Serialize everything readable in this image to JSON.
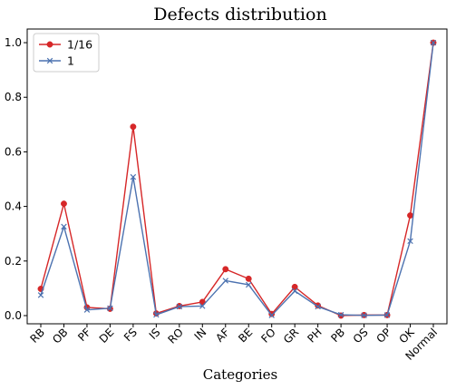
{
  "chart_data": {
    "type": "line",
    "title": "Defects distribution",
    "xlabel": "Categories",
    "ylabel": "",
    "categories": [
      "RB",
      "OB",
      "PF",
      "DE",
      "FS",
      "IS",
      "RO",
      "IN",
      "AF",
      "BE",
      "FO",
      "GR",
      "PH",
      "PB",
      "OS",
      "OP",
      "OK",
      "Normal"
    ],
    "ylim": [
      -0.03,
      1.05
    ],
    "yticks": [
      "0.0",
      "0.2",
      "0.4",
      "0.6",
      "0.8",
      "1.0"
    ],
    "grid": false,
    "legend_position": "upper-left",
    "series": [
      {
        "name": "1/16",
        "color": "#d62728",
        "marker": "circle",
        "values": [
          0.098,
          0.41,
          0.03,
          0.025,
          0.692,
          0.008,
          0.035,
          0.05,
          0.17,
          0.135,
          0.006,
          0.105,
          0.037,
          0.0,
          0.002,
          0.002,
          0.367,
          1.0
        ]
      },
      {
        "name": "1",
        "color": "#4c72b0",
        "marker": "x",
        "values": [
          0.075,
          0.326,
          0.021,
          0.027,
          0.508,
          0.003,
          0.033,
          0.035,
          0.128,
          0.113,
          0.001,
          0.09,
          0.033,
          0.003,
          0.001,
          0.002,
          0.273,
          1.0
        ]
      }
    ]
  }
}
